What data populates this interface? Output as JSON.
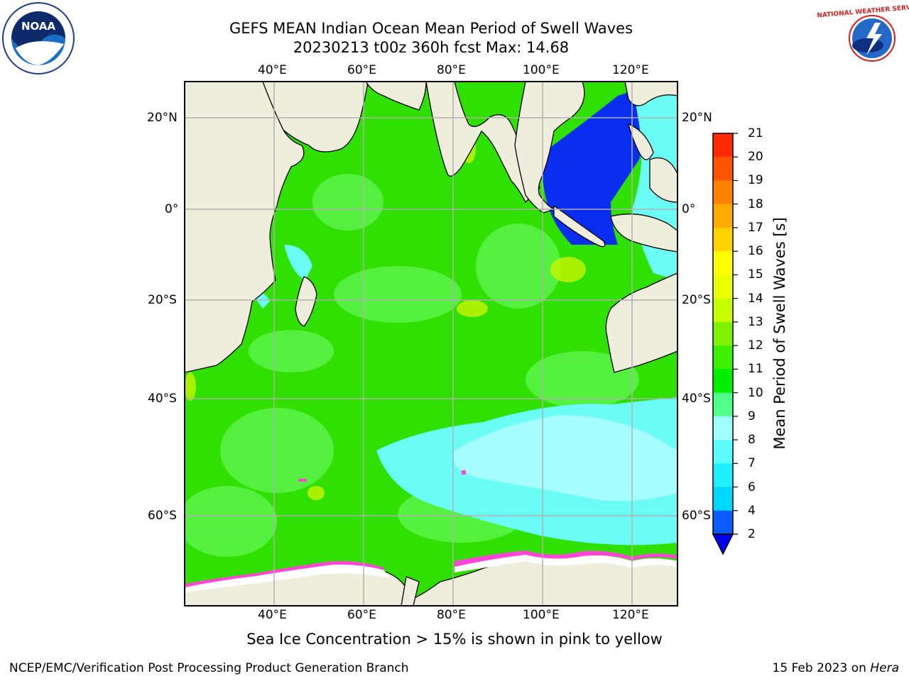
{
  "title": {
    "line1": "GEFS MEAN Indian Ocean Mean Period of Swell Waves",
    "line2": "20230213 t00z 360h fcst   Max: 14.68"
  },
  "axes": {
    "lon_labels": [
      "40°E",
      "60°E",
      "80°E",
      "100°E",
      "120°E"
    ],
    "lat_labels_left": [
      "20°N",
      "0°",
      "20°S",
      "40°S",
      "60°S"
    ],
    "lat_labels_right": [
      "20°N",
      "0°",
      "20°S",
      "40°S",
      "60°S"
    ]
  },
  "colorbar": {
    "label": "Mean Period of Swell Waves [s]",
    "ticks": [
      "2",
      "4",
      "6",
      "7",
      "8",
      "9",
      "10",
      "11",
      "12",
      "13",
      "14",
      "15",
      "16",
      "17",
      "18",
      "19",
      "20",
      "21"
    ],
    "colors": [
      "#0a5cff",
      "#00d8ff",
      "#1ef0ff",
      "#5cfcff",
      "#a0ffff",
      "#50ff8a",
      "#00ee00",
      "#3cf000",
      "#7ff200",
      "#c8ff00",
      "#eaff00",
      "#ffff00",
      "#ffd200",
      "#ffaa00",
      "#ff8200",
      "#ff5500",
      "#ff2a00"
    ],
    "extend_color": "#0000ee"
  },
  "logos": {
    "noaa_text": "NOAA",
    "noaa_ring": "NATIONAL OCEANIC AND ATMOSPHERIC ADMINISTRATION · U.S. DEPARTMENT OF COMMERCE",
    "nws_ring": "NATIONAL WEATHER SERVICE"
  },
  "caption": "Sea Ice Concentration > 15% is shown in pink to yellow",
  "footer": {
    "left": "NCEP/EMC/Verification Post Processing Product Generation Branch",
    "right_date": "15 Feb 2023 on ",
    "right_host": "Hera"
  },
  "map_colors": {
    "land": "#efeedc",
    "ocean_main": "#2fe000",
    "ocean_light": "#5cf34a",
    "ocean_cyan": "#6bfcf6",
    "ocean_lightcyan": "#a6fdfd",
    "ocean_blue": "#0a2ef0",
    "ice_white": "#ffffff",
    "ice_pink": "#ff44d8",
    "swell_yellow": "#c8f500",
    "grid": "#b0b0b0"
  }
}
